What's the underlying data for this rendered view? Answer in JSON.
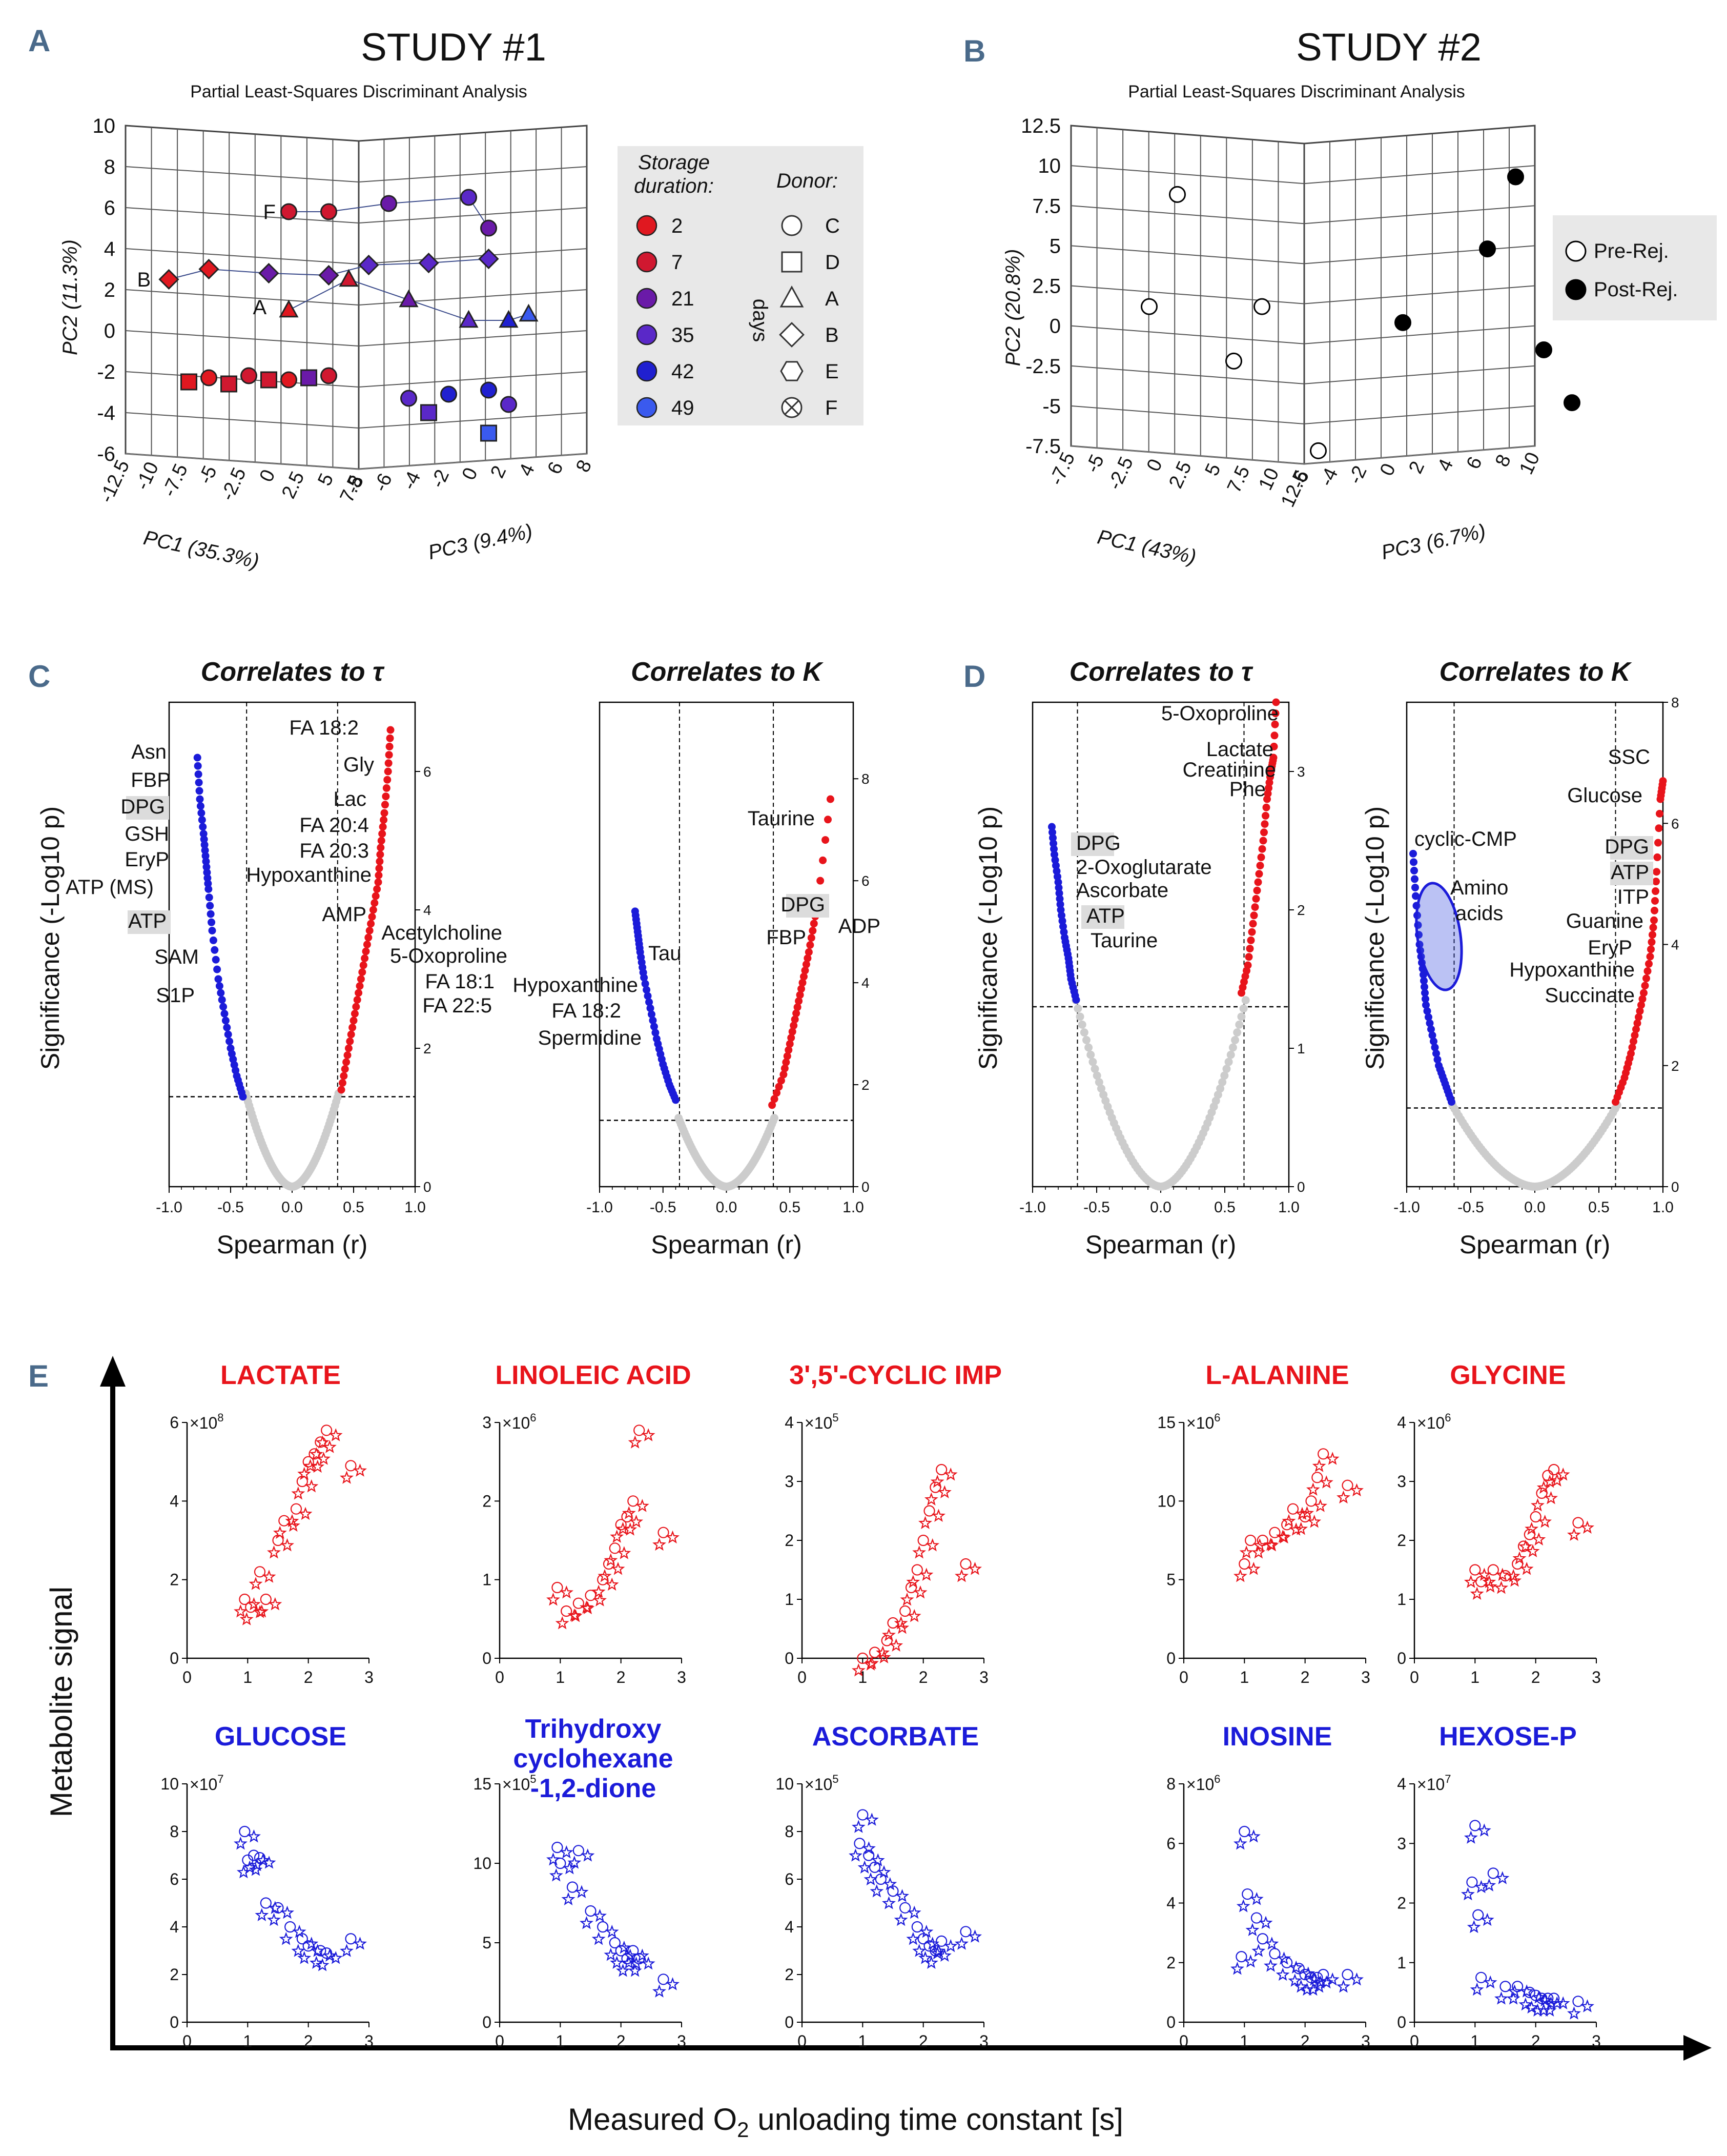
{
  "colors": {
    "red": "#e8141b",
    "blue": "#1b1bd9",
    "grey": "#cccccc",
    "label_blue": "#4a6a8a",
    "legend_bg": "#e8e8e8",
    "highlight": "#dcdcdc",
    "storage": [
      "#e01820",
      "#d01830",
      "#6a1aa8",
      "#5a28c8",
      "#2020d0",
      "#3a5aee"
    ]
  },
  "panel_labels": [
    "A",
    "B",
    "C",
    "D",
    "E"
  ],
  "panel_a": {
    "title": "STUDY #1",
    "subtitle": "Partial Least-Squares Discriminant Analysis",
    "y_axis_label": "PC2 (11.3%)",
    "x_axis_label": "PC1 (35.3%)",
    "z_axis_label": "PC3 (9.4%)",
    "y_ticks": [
      "10",
      "8",
      "6",
      "4",
      "2",
      "0",
      "-2",
      "-4",
      "-6"
    ],
    "x_ticks": [
      "-12.5",
      "-10",
      "-7.5",
      "-5",
      "-2.5",
      "0",
      "2.5",
      "5",
      "7.5"
    ],
    "z_ticks": [
      "-8",
      "-6",
      "-4",
      "-2",
      "0",
      "2",
      "4",
      "6",
      "8"
    ],
    "donor_letters": [
      "F",
      "B",
      "A"
    ],
    "legend": {
      "storage_title_1": "Storage",
      "storage_title_2": "duration:",
      "donor_title": "Donor:",
      "days_label": "days",
      "durations": [
        "2",
        "7",
        "21",
        "35",
        "42",
        "49"
      ],
      "donors": [
        "C",
        "D",
        "A",
        "B",
        "E",
        "F"
      ]
    }
  },
  "panel_b": {
    "title": "STUDY #2",
    "subtitle": "Partial Least-Squares Discriminant Analysis",
    "y_axis_label": "PC2 (20.8%)",
    "x_axis_label": "PC1 (43%)",
    "z_axis_label": "PC3 (6.7%)",
    "y_ticks": [
      "12.5",
      "10",
      "7.5",
      "5",
      "2.5",
      "0",
      "-2.5",
      "-5",
      "-7.5"
    ],
    "x_ticks": [
      "-7.5",
      "-5",
      "-2.5",
      "0",
      "2.5",
      "5",
      "7.5",
      "10",
      "12.5"
    ],
    "z_ticks": [
      "-6",
      "-4",
      "-2",
      "0",
      "2",
      "4",
      "6",
      "8",
      "10"
    ],
    "legend": [
      "Pre-Rej.",
      "Post-Rej."
    ]
  },
  "panel_c": {
    "titles": [
      "Correlates to τ",
      "Correlates to Κ"
    ],
    "y_axis_label": "Significance (-Log10 p)",
    "x_axis_label": "Spearman (r)",
    "x_ticks": [
      "-1.0",
      "-0.5",
      "0.0",
      "0.5",
      "1.0"
    ],
    "tau_right_ticks": [
      "0",
      "2",
      "4",
      "6"
    ],
    "kappa_right_ticks": [
      "0",
      "2",
      "4",
      "6",
      "8"
    ],
    "tau_labels_left": [
      "Asn",
      "FBP",
      "DPG",
      "GSH",
      "EryP",
      "ATP (MS)",
      "ATP",
      "SAM",
      "S1P"
    ],
    "tau_labels_right": [
      "FA 18:2",
      "Gly",
      "Lac",
      "FA 20:4",
      "FA 20:3",
      "Hypoxanthine",
      "AMP",
      "Acetylcholine",
      "5-Oxoproline",
      "FA 18:1",
      "FA 22:5"
    ],
    "kappa_labels_left": [
      "Tau",
      "Hypoxanthine",
      "FA 18:2",
      "Spermidine"
    ],
    "kappa_labels_right": [
      "Taurine",
      "DPG",
      "FBP",
      "ADP"
    ]
  },
  "panel_d": {
    "titles": [
      "Correlates to τ",
      "Correlates to Κ"
    ],
    "y_axis_label": "Significance (-Log10 p)",
    "x_axis_label": "Spearman (r)",
    "x_ticks": [
      "-1.0",
      "-0.5",
      "0.0",
      "0.5",
      "1.0"
    ],
    "tau_right_ticks": [
      "0",
      "1",
      "2",
      "3"
    ],
    "kappa_right_ticks": [
      "0",
      "2",
      "4",
      "6",
      "8"
    ],
    "tau_labels_right": [
      "5-Oxoproline",
      "Lactate",
      "Creatinine",
      "Phe"
    ],
    "tau_labels_left": [
      "DPG",
      "2-Oxoglutarate",
      "Ascorbate",
      "ATP",
      "Taurine"
    ],
    "kappa_labels_left": [
      "cyclic-CMP",
      "Amino",
      "acids"
    ],
    "kappa_labels_right": [
      "SSC",
      "Glucose",
      "DPG",
      "ATP",
      "ITP",
      "Guanine",
      "EryP",
      "Hypoxanthine",
      "Succinate"
    ]
  },
  "panel_e": {
    "y_axis_label": "Metabolite signal",
    "x_axis_label_pre": "Measured O",
    "x_axis_label_sub": "2",
    "x_axis_label_post": " unloading time constant [s]",
    "x_ticks": [
      "0",
      "1",
      "2",
      "3"
    ],
    "top_titles": [
      "LACTATE",
      "LINOLEIC ACID",
      "3',5'-CYCLIC IMP",
      "L-ALANINE",
      "GLYCINE"
    ],
    "bottom_titles": [
      "GLUCOSE",
      "Trihydroxy cyclohexane -1,2-dione",
      "ASCORBATE",
      "INOSINE",
      "HEXOSE-P"
    ],
    "title_line_1": "Trihydroxy",
    "title_line_2": "cyclohexane",
    "title_line_3": "-1,2-dione",
    "multipliers_top": [
      "8",
      "6",
      "5",
      "6",
      "6"
    ],
    "multipliers_bottom": [
      "7",
      "5",
      "5",
      "6",
      "7"
    ],
    "times_prefix": "×10",
    "yticks_top": [
      [
        "0",
        "2",
        "4",
        "6"
      ],
      [
        "0",
        "1",
        "2",
        "3"
      ],
      [
        "0",
        "1",
        "2",
        "3",
        "4"
      ],
      [
        "0",
        "5",
        "10",
        "15"
      ],
      [
        "0",
        "1",
        "2",
        "3",
        "4"
      ]
    ],
    "yticks_bottom": [
      [
        "0",
        "2",
        "4",
        "6",
        "8",
        "10"
      ],
      [
        "0",
        "5",
        "10",
        "15"
      ],
      [
        "0",
        "2",
        "4",
        "6",
        "8",
        "10"
      ],
      [
        "0",
        "2",
        "4",
        "6",
        "8"
      ],
      [
        "0",
        "1",
        "2",
        "3",
        "4"
      ]
    ]
  },
  "chart_data": [
    {
      "type": "scatter",
      "title": "STUDY #1 PLS-DA",
      "series": [
        {
          "name": "Donor F",
          "x": [
            -6,
            -4,
            -1,
            3,
            4
          ],
          "y": [
            5.8,
            5.8,
            6.2,
            6.5,
            5
          ]
        },
        {
          "name": "Donor B",
          "x": [
            -12,
            -10,
            -7,
            -4,
            -2,
            1,
            4
          ],
          "y": [
            2.5,
            3,
            2.8,
            2.7,
            3.2,
            3.3,
            3.5
          ]
        },
        {
          "name": "Donor A",
          "x": [
            -6,
            -3,
            0,
            3,
            5,
            6
          ],
          "y": [
            1,
            2.5,
            1.5,
            0.5,
            0.5,
            0.8
          ]
        },
        {
          "name": "Donor D",
          "x": [
            -11,
            -9,
            -7,
            -5,
            1,
            4
          ],
          "y": [
            -2.5,
            -2.6,
            -2.4,
            -2.3,
            -4,
            -5
          ]
        },
        {
          "name": "Donor C",
          "x": [
            -10,
            -8,
            -6,
            -4,
            0,
            2,
            4,
            5
          ],
          "y": [
            -2.3,
            -2.2,
            -2.4,
            -2.2,
            -3.3,
            -3.1,
            -2.9,
            -3.6
          ]
        }
      ]
    },
    {
      "type": "scatter",
      "title": "STUDY #2 PLS-DA",
      "series": [
        {
          "name": "Pre-Rej.",
          "x": [
            -5,
            -6,
            -2,
            -3,
            0
          ],
          "y": [
            8.2,
            1.2,
            1.2,
            -2.2,
            -7.8
          ]
        },
        {
          "name": "Post-Rej.",
          "x": [
            7,
            6,
            3,
            8,
            9
          ],
          "y": [
            9.3,
            4.8,
            0.2,
            -1.5,
            -4.8
          ]
        }
      ]
    },
    {
      "type": "scatter",
      "title": "Correlates to τ (Study 1)",
      "xlabel": "Spearman (r)",
      "ylabel": "Significance (-Log10 p)",
      "xlim": [
        -1,
        1
      ],
      "ylim": [
        0,
        7
      ],
      "series": [
        {
          "name": "negative",
          "x": [
            -0.77,
            -0.75,
            -0.72,
            -0.7,
            -0.68,
            -0.65,
            -0.6,
            -0.55,
            -0.5,
            -0.45,
            -0.4
          ],
          "y": [
            6.2,
            5.6,
            5.1,
            4.7,
            4.3,
            3.7,
            3.0,
            2.5,
            2.0,
            1.6,
            1.3
          ]
        },
        {
          "name": "positive",
          "x": [
            0.4,
            0.45,
            0.5,
            0.55,
            0.6,
            0.65,
            0.7,
            0.72,
            0.75,
            0.78,
            0.8
          ],
          "y": [
            1.4,
            1.9,
            2.4,
            2.9,
            3.4,
            3.9,
            4.4,
            4.9,
            5.4,
            6.0,
            6.6
          ]
        }
      ]
    },
    {
      "type": "scatter",
      "title": "Correlates to Κ (Study 1)",
      "xlabel": "Spearman (r)",
      "ylabel": "Significance (-Log10 p)",
      "xlim": [
        -1,
        1
      ],
      "ylim": [
        0,
        9.5
      ],
      "series": [
        {
          "name": "negative",
          "x": [
            -0.72,
            -0.7,
            -0.68,
            -0.65,
            -0.6,
            -0.55,
            -0.5,
            -0.45,
            -0.4
          ],
          "y": [
            5.4,
            5.0,
            4.6,
            4.1,
            3.5,
            2.9,
            2.4,
            2.0,
            1.7
          ]
        },
        {
          "name": "positive",
          "x": [
            0.36,
            0.45,
            0.5,
            0.55,
            0.6,
            0.65,
            0.7,
            0.72,
            0.82
          ],
          "y": [
            1.6,
            2.2,
            2.8,
            3.4,
            4.0,
            4.6,
            5.3,
            5.6,
            7.6
          ]
        }
      ]
    },
    {
      "type": "scatter",
      "title": "Correlates to τ (Study 2)",
      "xlabel": "Spearman (r)",
      "ylabel": "Significance (-Log10 p)",
      "xlim": [
        -1,
        1
      ],
      "ylim": [
        0,
        3.5
      ],
      "series": [
        {
          "name": "negative",
          "x": [
            -0.85,
            -0.83,
            -0.8,
            -0.78,
            -0.75,
            -0.72,
            -0.7,
            -0.66
          ],
          "y": [
            2.6,
            2.4,
            2.2,
            2.0,
            1.8,
            1.65,
            1.5,
            1.35
          ]
        },
        {
          "name": "positive",
          "x": [
            0.63,
            0.68,
            0.72,
            0.76,
            0.8,
            0.83,
            0.86,
            0.88,
            0.9
          ],
          "y": [
            1.4,
            1.6,
            1.9,
            2.2,
            2.5,
            2.8,
            3.0,
            3.1,
            3.5
          ]
        }
      ]
    },
    {
      "type": "scatter",
      "title": "Correlates to Κ (Study 2)",
      "xlabel": "Spearman (r)",
      "ylabel": "Significance (-Log10 p)",
      "xlim": [
        -1,
        1
      ],
      "ylim": [
        0,
        8
      ],
      "series": [
        {
          "name": "negative",
          "x": [
            -0.95,
            -0.93,
            -0.9,
            -0.87,
            -0.85,
            -0.8,
            -0.75,
            -0.7,
            -0.65
          ],
          "y": [
            5.5,
            4.8,
            4.0,
            3.5,
            3.0,
            2.5,
            2.0,
            1.7,
            1.4
          ]
        },
        {
          "name": "positive",
          "x": [
            0.63,
            0.7,
            0.75,
            0.8,
            0.85,
            0.9,
            0.93,
            0.95,
            0.98,
            1.0
          ],
          "y": [
            1.4,
            1.8,
            2.2,
            2.7,
            3.2,
            3.8,
            4.4,
            5.2,
            6.4,
            6.7
          ]
        }
      ]
    },
    {
      "type": "scatter",
      "title": "LACTATE",
      "multiplier": "1e8",
      "xlim": [
        0,
        3
      ],
      "ylim": [
        0,
        6
      ],
      "x": [
        0.95,
        1.05,
        1.2,
        1.3,
        1.5,
        1.6,
        1.8,
        1.9,
        2.0,
        2.1,
        2.2,
        2.3,
        2.7
      ],
      "y": [
        1.5,
        1.3,
        2.2,
        1.5,
        3.0,
        3.5,
        3.8,
        4.5,
        5.0,
        5.2,
        5.5,
        5.8,
        4.9
      ]
    },
    {
      "type": "scatter",
      "title": "LINOLEIC ACID",
      "multiplier": "1e6",
      "xlim": [
        0,
        3
      ],
      "ylim": [
        0,
        3
      ],
      "x": [
        0.95,
        1.1,
        1.3,
        1.5,
        1.7,
        1.8,
        1.9,
        2.0,
        2.1,
        2.2,
        2.3,
        2.7
      ],
      "y": [
        0.9,
        0.6,
        0.7,
        0.8,
        1.0,
        1.2,
        1.4,
        1.7,
        1.8,
        2.0,
        2.9,
        1.6
      ]
    },
    {
      "type": "scatter",
      "title": "3',5'-CYCLIC IMP",
      "multiplier": "1e5",
      "xlim": [
        0,
        3
      ],
      "ylim": [
        0,
        4
      ],
      "x": [
        1.0,
        1.2,
        1.4,
        1.5,
        1.7,
        1.8,
        1.9,
        2.0,
        2.1,
        2.2,
        2.3,
        2.7
      ],
      "y": [
        0.0,
        0.1,
        0.3,
        0.6,
        0.8,
        1.2,
        1.5,
        2.0,
        2.5,
        2.9,
        3.2,
        1.6
      ]
    },
    {
      "type": "scatter",
      "title": "L-ALANINE",
      "multiplier": "1e6",
      "xlim": [
        0,
        3
      ],
      "ylim": [
        0,
        15
      ],
      "x": [
        1.0,
        1.1,
        1.3,
        1.5,
        1.7,
        1.8,
        2.0,
        2.1,
        2.2,
        2.3,
        2.7
      ],
      "y": [
        6.0,
        7.5,
        7.5,
        8.0,
        8.5,
        9.5,
        9.0,
        10.0,
        11.5,
        13.0,
        11.0
      ]
    },
    {
      "type": "scatter",
      "title": "GLYCINE",
      "multiplier": "1e6",
      "xlim": [
        0,
        3
      ],
      "ylim": [
        0,
        4
      ],
      "x": [
        1.0,
        1.1,
        1.3,
        1.5,
        1.7,
        1.8,
        1.9,
        2.0,
        2.1,
        2.2,
        2.3,
        2.7
      ],
      "y": [
        1.5,
        1.3,
        1.5,
        1.4,
        1.6,
        1.9,
        2.1,
        2.4,
        2.8,
        3.1,
        3.2,
        2.3
      ]
    },
    {
      "type": "scatter",
      "title": "GLUCOSE",
      "multiplier": "1e7",
      "xlim": [
        0,
        3
      ],
      "ylim": [
        0,
        10
      ],
      "x": [
        0.95,
        1.0,
        1.1,
        1.2,
        1.3,
        1.5,
        1.7,
        1.9,
        2.0,
        2.2,
        2.3,
        2.7
      ],
      "y": [
        8.0,
        6.8,
        7.0,
        6.9,
        5.0,
        4.8,
        4.0,
        3.5,
        3.2,
        3.0,
        2.9,
        3.5
      ]
    },
    {
      "type": "scatter",
      "title": "Trihydroxy cyclohexane -1,2-dione",
      "multiplier": "1e5",
      "xlim": [
        0,
        3
      ],
      "ylim": [
        0,
        15
      ],
      "x": [
        0.95,
        1.0,
        1.2,
        1.3,
        1.5,
        1.7,
        1.9,
        2.0,
        2.1,
        2.2,
        2.3,
        2.7
      ],
      "y": [
        11.0,
        10.0,
        8.5,
        10.8,
        7.0,
        6.0,
        5.0,
        4.5,
        4.0,
        4.5,
        4.0,
        2.7
      ]
    },
    {
      "type": "scatter",
      "title": "ASCORBATE",
      "multiplier": "1e5",
      "xlim": [
        0,
        3
      ],
      "ylim": [
        0,
        10
      ],
      "x": [
        0.95,
        1.0,
        1.1,
        1.2,
        1.3,
        1.5,
        1.7,
        1.9,
        2.0,
        2.1,
        2.2,
        2.3,
        2.7
      ],
      "y": [
        7.5,
        8.7,
        7.0,
        6.5,
        6.0,
        5.5,
        4.8,
        4.0,
        3.5,
        3.2,
        3.0,
        3.4,
        3.8
      ]
    },
    {
      "type": "scatter",
      "title": "INOSINE",
      "multiplier": "1e6",
      "xlim": [
        0,
        3
      ],
      "ylim": [
        0,
        8
      ],
      "x": [
        0.95,
        1.0,
        1.05,
        1.2,
        1.3,
        1.5,
        1.7,
        1.9,
        2.0,
        2.1,
        2.2,
        2.3,
        2.7
      ],
      "y": [
        2.2,
        6.4,
        4.3,
        3.5,
        2.8,
        2.3,
        2.0,
        1.8,
        1.6,
        1.5,
        1.5,
        1.6,
        1.6
      ]
    },
    {
      "type": "scatter",
      "title": "HEXOSE-P",
      "multiplier": "1e7",
      "xlim": [
        0,
        3
      ],
      "ylim": [
        0,
        4
      ],
      "x": [
        0.95,
        1.0,
        1.05,
        1.1,
        1.3,
        1.5,
        1.7,
        1.9,
        2.0,
        2.1,
        2.2,
        2.3,
        2.7
      ],
      "y": [
        2.35,
        3.3,
        1.8,
        0.75,
        2.5,
        0.6,
        0.6,
        0.5,
        0.45,
        0.4,
        0.4,
        0.4,
        0.35
      ]
    }
  ]
}
